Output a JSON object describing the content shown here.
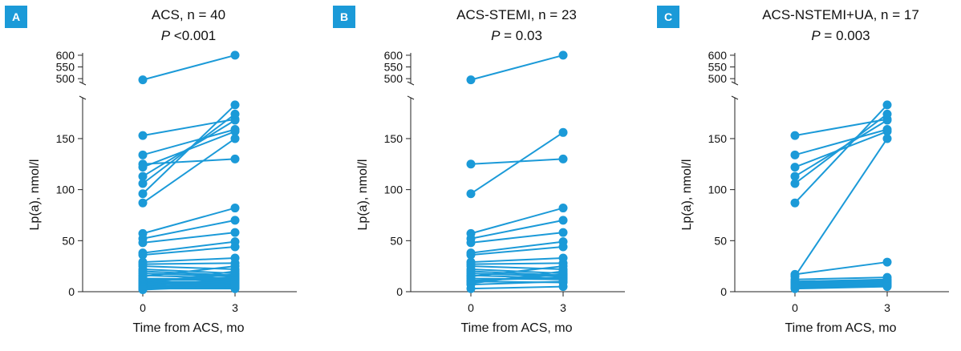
{
  "colors": {
    "series": "#1b9ad8",
    "axis": "#222222",
    "badge": "#1b9ad8"
  },
  "chart_data": [
    {
      "type": "line",
      "badge": "A",
      "title": "ACS, n = 40",
      "pvalue_label": "P",
      "pvalue_text": " <0.001",
      "xlabel": "Time from ACS, mo",
      "ylabel": "Lp(a), nmol/l",
      "x_ticks": [
        "0",
        "3"
      ],
      "x_values": [
        0,
        3
      ],
      "y_ticks_lower": [
        "0",
        "50",
        "100",
        "150"
      ],
      "y_ticks_upper": [
        "500",
        "550",
        "600"
      ],
      "ylim_lower": [
        0,
        190
      ],
      "ylim_upper": [
        480,
        610
      ],
      "broken_axis": true,
      "series": [
        {
          "values": [
            495,
            600
          ]
        },
        {
          "values": [
            153,
            169
          ]
        },
        {
          "values": [
            134,
            159
          ]
        },
        {
          "values": [
            125,
            130
          ]
        },
        {
          "values": [
            122,
            157
          ]
        },
        {
          "values": [
            113,
            168
          ]
        },
        {
          "values": [
            106,
            174
          ]
        },
        {
          "values": [
            96,
            183
          ]
        },
        {
          "values": [
            87,
            150
          ]
        },
        {
          "values": [
            57,
            82
          ]
        },
        {
          "values": [
            52,
            70
          ]
        },
        {
          "values": [
            48,
            58
          ]
        },
        {
          "values": [
            38,
            49
          ]
        },
        {
          "values": [
            36,
            44
          ]
        },
        {
          "values": [
            29,
            33
          ]
        },
        {
          "values": [
            27,
            28
          ]
        },
        {
          "values": [
            25,
            22
          ]
        },
        {
          "values": [
            22,
            18
          ]
        },
        {
          "values": [
            20,
            16
          ]
        },
        {
          "values": [
            18,
            15
          ]
        },
        {
          "values": [
            16,
            13
          ]
        },
        {
          "values": [
            15,
            25
          ]
        },
        {
          "values": [
            13,
            12
          ]
        },
        {
          "values": [
            12,
            11
          ]
        },
        {
          "values": [
            11,
            14
          ]
        },
        {
          "values": [
            10,
            9
          ]
        },
        {
          "values": [
            10,
            17
          ]
        },
        {
          "values": [
            9,
            8
          ]
        },
        {
          "values": [
            8,
            20
          ]
        },
        {
          "values": [
            8,
            7
          ]
        },
        {
          "values": [
            7,
            10
          ]
        },
        {
          "values": [
            6,
            6
          ]
        },
        {
          "values": [
            6,
            12
          ]
        },
        {
          "values": [
            5,
            5
          ]
        },
        {
          "values": [
            5,
            9
          ]
        },
        {
          "values": [
            4,
            4
          ]
        },
        {
          "values": [
            4,
            11
          ]
        },
        {
          "values": [
            3,
            3
          ]
        },
        {
          "values": [
            3,
            8
          ]
        },
        {
          "values": [
            2,
            6
          ]
        }
      ]
    },
    {
      "type": "line",
      "badge": "B",
      "title": "ACS-STEMI, n = 23",
      "pvalue_label": "P",
      "pvalue_text": " = 0.03",
      "xlabel": "Time from ACS, mo",
      "ylabel": "Lp(a), nmol/l",
      "x_ticks": [
        "0",
        "3"
      ],
      "x_values": [
        0,
        3
      ],
      "y_ticks_lower": [
        "0",
        "50",
        "100",
        "150"
      ],
      "y_ticks_upper": [
        "500",
        "550",
        "600"
      ],
      "ylim_lower": [
        0,
        190
      ],
      "ylim_upper": [
        480,
        610
      ],
      "broken_axis": true,
      "series": [
        {
          "values": [
            495,
            600
          ]
        },
        {
          "values": [
            125,
            130
          ]
        },
        {
          "values": [
            96,
            156
          ]
        },
        {
          "values": [
            57,
            82
          ]
        },
        {
          "values": [
            52,
            70
          ]
        },
        {
          "values": [
            48,
            58
          ]
        },
        {
          "values": [
            38,
            49
          ]
        },
        {
          "values": [
            36,
            44
          ]
        },
        {
          "values": [
            29,
            33
          ]
        },
        {
          "values": [
            27,
            28
          ]
        },
        {
          "values": [
            25,
            22
          ]
        },
        {
          "values": [
            22,
            18
          ]
        },
        {
          "values": [
            20,
            16
          ]
        },
        {
          "values": [
            18,
            15
          ]
        },
        {
          "values": [
            16,
            13
          ]
        },
        {
          "values": [
            15,
            25
          ]
        },
        {
          "values": [
            13,
            12
          ]
        },
        {
          "values": [
            11,
            14
          ]
        },
        {
          "values": [
            10,
            9
          ]
        },
        {
          "values": [
            10,
            17
          ]
        },
        {
          "values": [
            8,
            20
          ]
        },
        {
          "values": [
            7,
            10
          ]
        },
        {
          "values": [
            3,
            5
          ]
        }
      ]
    },
    {
      "type": "line",
      "badge": "C",
      "title": "ACS-NSTEMI+UA, n = 17",
      "pvalue_label": "P",
      "pvalue_text": " = 0.003",
      "xlabel": "Time from ACS, mo",
      "ylabel": "Lp(a), nmol/l",
      "x_ticks": [
        "0",
        "3"
      ],
      "x_values": [
        0,
        3
      ],
      "y_ticks_lower": [
        "0",
        "50",
        "100",
        "150"
      ],
      "y_ticks_upper": [
        "500",
        "550",
        "600"
      ],
      "ylim_lower": [
        0,
        190
      ],
      "ylim_upper": [
        480,
        610
      ],
      "broken_axis": true,
      "series": [
        {
          "values": [
            153,
            169
          ]
        },
        {
          "values": [
            134,
            159
          ]
        },
        {
          "values": [
            122,
            157
          ]
        },
        {
          "values": [
            113,
            168
          ]
        },
        {
          "values": [
            106,
            174
          ]
        },
        {
          "values": [
            87,
            183
          ]
        },
        {
          "values": [
            17,
            29
          ]
        },
        {
          "values": [
            15,
            150
          ]
        },
        {
          "values": [
            12,
            14
          ]
        },
        {
          "values": [
            10,
            12
          ]
        },
        {
          "values": [
            9,
            11
          ]
        },
        {
          "values": [
            8,
            10
          ]
        },
        {
          "values": [
            7,
            9
          ]
        },
        {
          "values": [
            6,
            8
          ]
        },
        {
          "values": [
            5,
            7
          ]
        },
        {
          "values": [
            4,
            6
          ]
        },
        {
          "values": [
            3,
            5
          ]
        }
      ]
    }
  ]
}
